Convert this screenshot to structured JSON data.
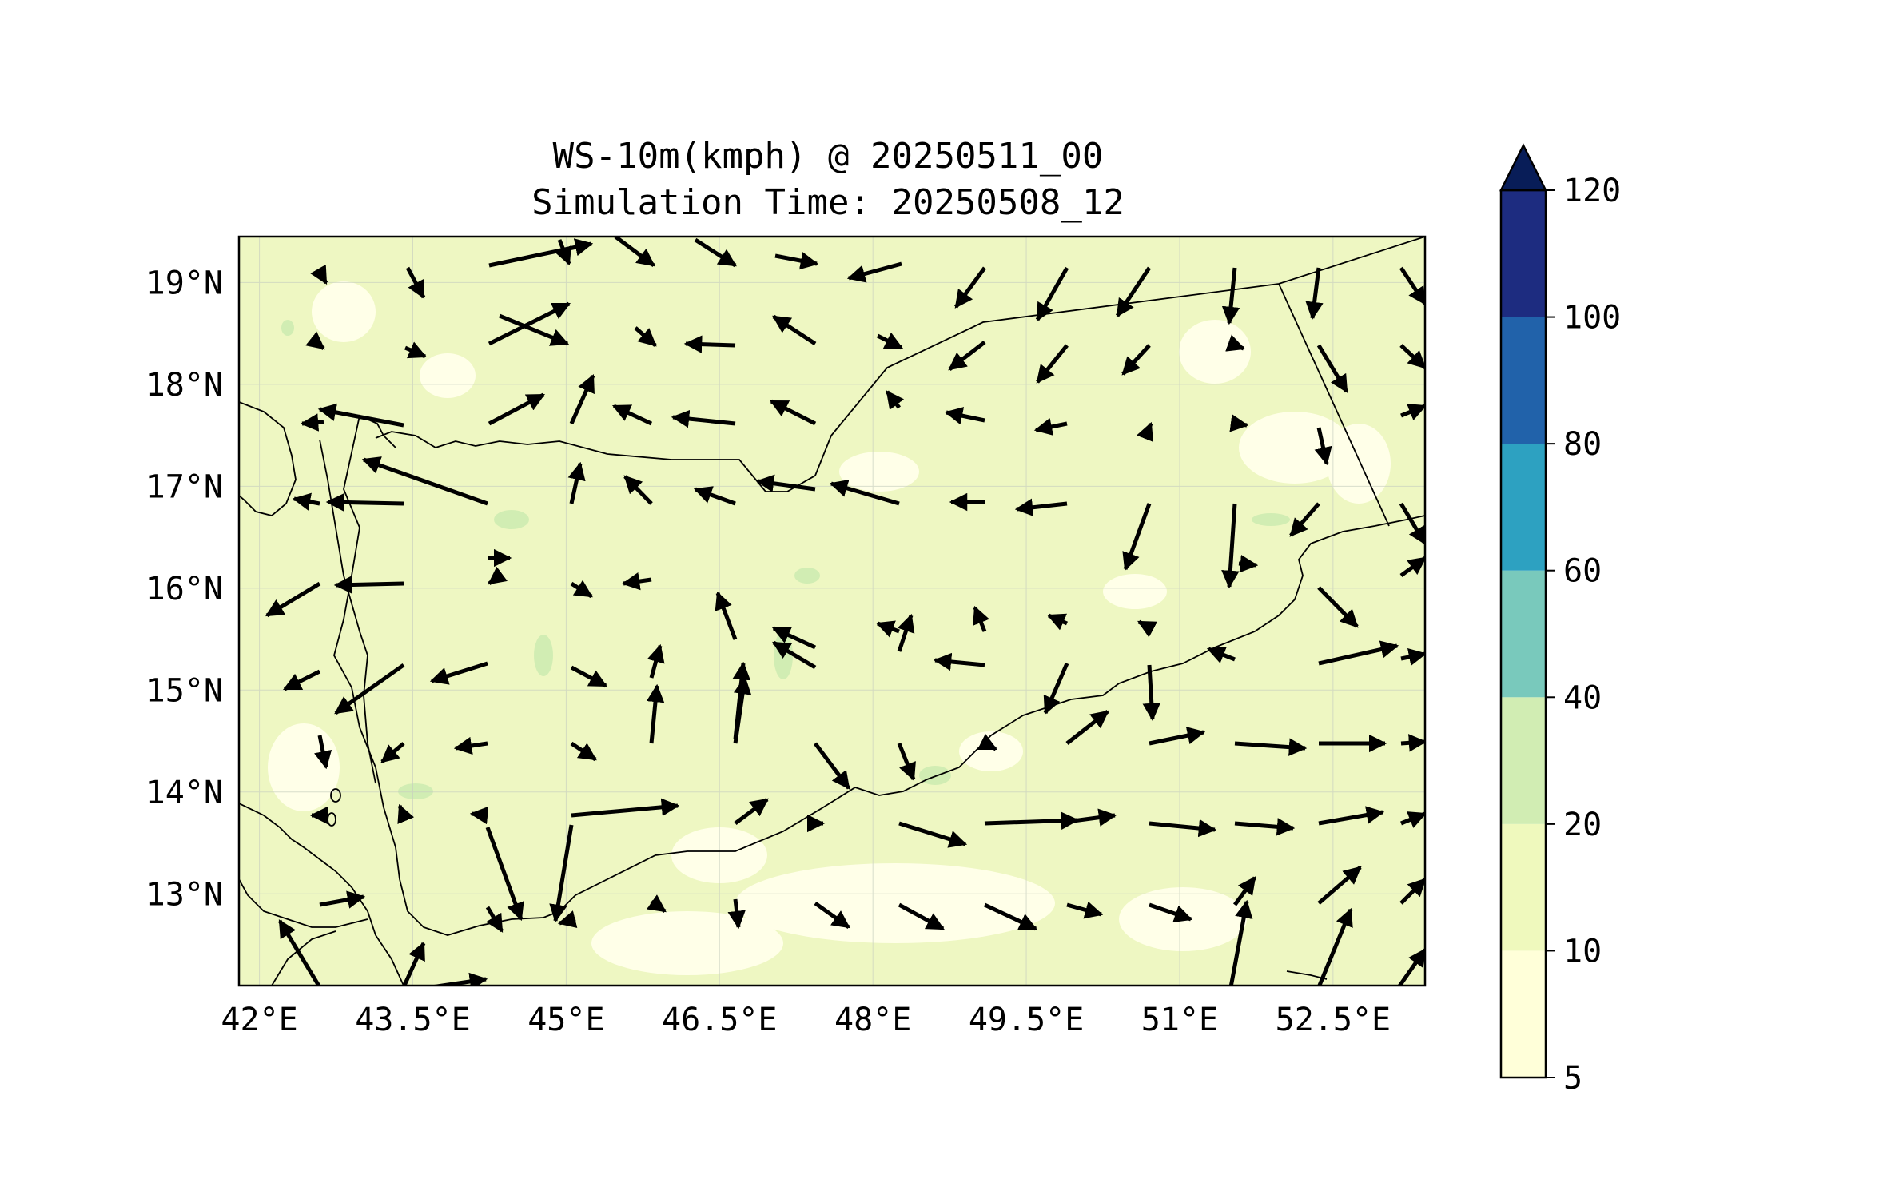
{
  "title": {
    "line1": "WS-10m(kmph) @ 20250511_00",
    "line2": "Simulation Time: 20250508_12"
  },
  "map": {
    "lon_range": [
      41.8,
      53.4
    ],
    "lat_range": [
      12.1,
      19.45
    ],
    "x_ticks": [
      "42°E",
      "43.5°E",
      "45°E",
      "46.5°E",
      "48°E",
      "49.5°E",
      "51°E",
      "52.5°E"
    ],
    "x_tick_values": [
      42,
      43.5,
      45,
      46.5,
      48,
      49.5,
      51,
      52.5
    ],
    "y_ticks": [
      "19°N",
      "18°N",
      "17°N",
      "16°N",
      "15°N",
      "14°N",
      "13°N"
    ],
    "y_tick_values": [
      19,
      18,
      17,
      16,
      15,
      14,
      13
    ],
    "background_color": "#eef7c2",
    "gridlines": true,
    "features": [
      "coastline",
      "country borders",
      "wind vectors"
    ]
  },
  "colorbar": {
    "levels": [
      "5",
      "10",
      "20",
      "40",
      "60",
      "80",
      "100",
      "120"
    ],
    "level_values": [
      5,
      10,
      20,
      40,
      60,
      80,
      100,
      120
    ],
    "colors": [
      "#ffffd9",
      "#eff9bd",
      "#d1edb3",
      "#79c9bc",
      "#2da1c1",
      "#2162aa",
      "#1d2c80"
    ],
    "extend_color": "#081d58",
    "extend": "max"
  }
}
